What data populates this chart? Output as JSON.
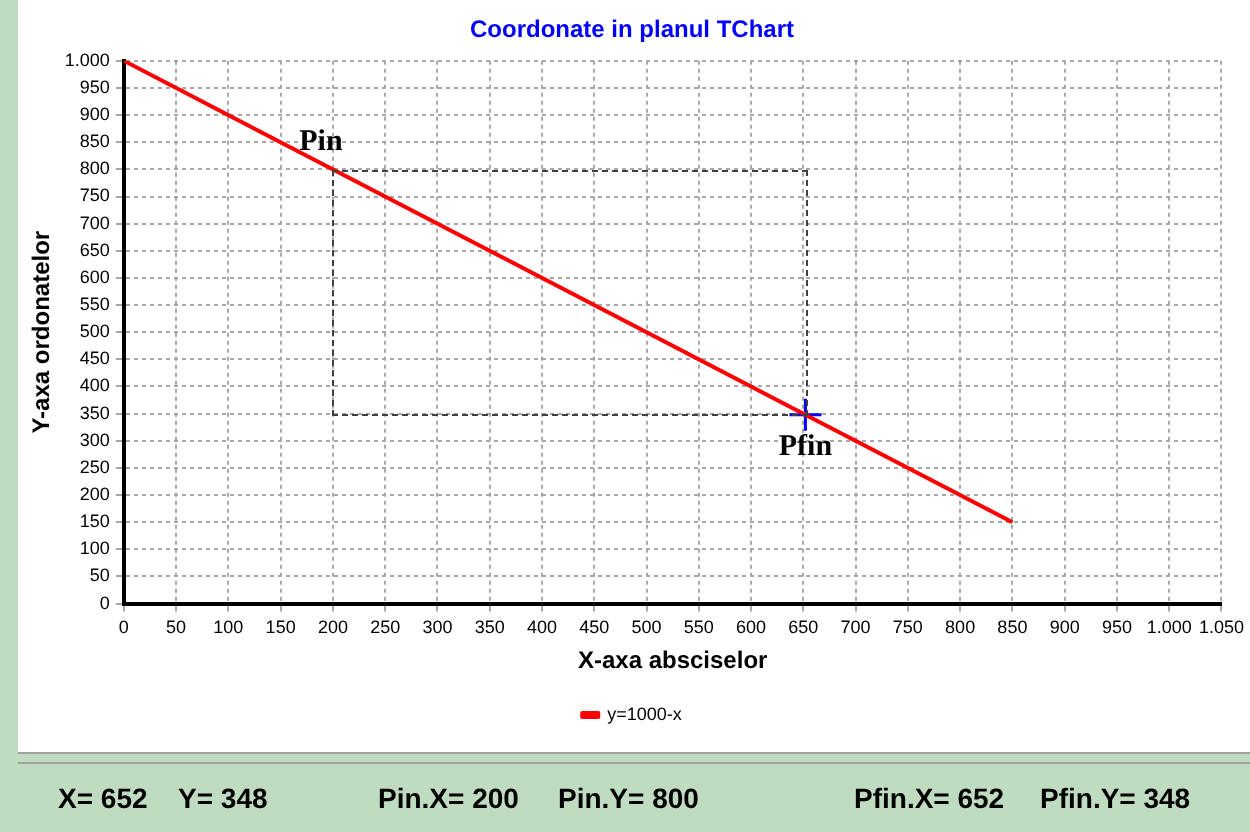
{
  "chart_data": {
    "type": "line",
    "title": "Coordonate in planul TChart",
    "xlabel": "X-axa absciselor",
    "ylabel": "Y-axa ordonatelor",
    "xlim": [
      0,
      1050
    ],
    "ylim": [
      0,
      1000
    ],
    "xticks": [
      0,
      50,
      100,
      150,
      200,
      250,
      300,
      350,
      400,
      450,
      500,
      550,
      600,
      650,
      700,
      750,
      800,
      850,
      900,
      950,
      {
        "value": 1000,
        "label": "1.000"
      },
      {
        "value": 1050,
        "label": "1.050"
      }
    ],
    "yticks": [
      0,
      50,
      100,
      150,
      200,
      250,
      300,
      350,
      400,
      450,
      500,
      550,
      600,
      650,
      700,
      750,
      800,
      850,
      900,
      950,
      {
        "value": 1000,
        "label": "1.000"
      }
    ],
    "grid": true,
    "legend": "bottom",
    "series": [
      {
        "name": "y=1000-x",
        "color": "#ff0000",
        "x": [
          0,
          850
        ],
        "values": [
          1000,
          150
        ],
        "marker": "none",
        "line_style": "solid"
      },
      {
        "type": "scatter",
        "color": "#0000ff",
        "x": [
          652
        ],
        "values": [
          348
        ],
        "marker": "cross"
      }
    ],
    "annotations": [
      {
        "text": "Pin",
        "x": 200,
        "y": 800
      },
      {
        "text": "Pfin",
        "x": 652,
        "y": 348
      },
      "X= 652",
      "Y= 348",
      "Pin.X= 200",
      "Pin.Y= 800",
      "Pfin.X= 652",
      "Pfin.Y= 348"
    ]
  }
}
